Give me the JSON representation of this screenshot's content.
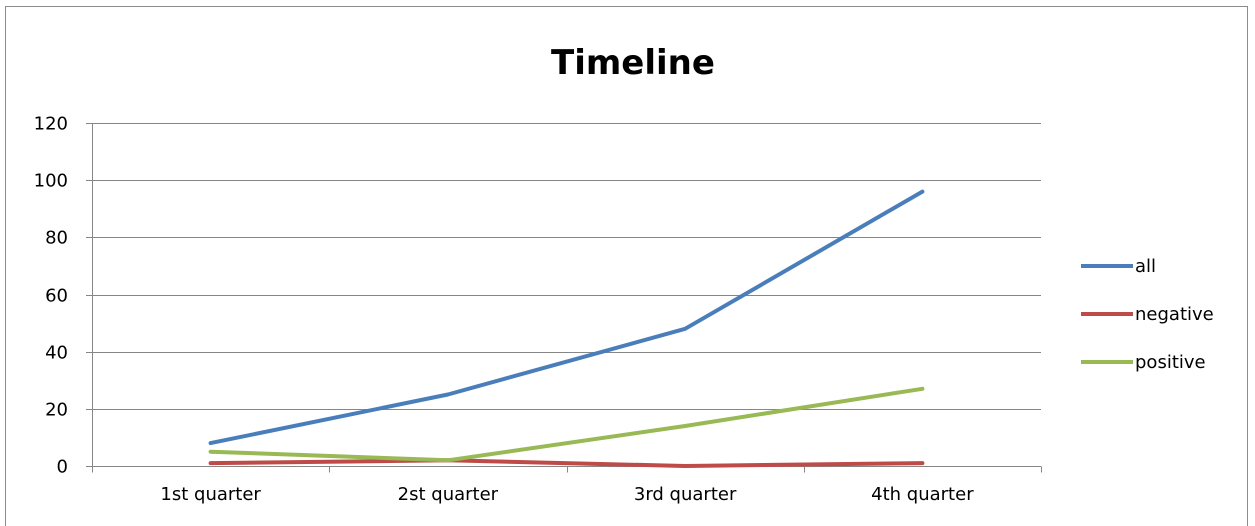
{
  "chart_data": {
    "type": "line",
    "title": "Timeline",
    "xlabel": "",
    "ylabel": "",
    "categories": [
      "1st quarter",
      "2st quarter",
      "3rd quarter",
      "4th quarter"
    ],
    "ylim": [
      0,
      120
    ],
    "yticks": [
      0,
      20,
      40,
      60,
      80,
      100,
      120
    ],
    "grid": true,
    "legend_position": "right",
    "series": [
      {
        "name": "all",
        "color": "#4a7ebb",
        "values": [
          8,
          25,
          48,
          96
        ]
      },
      {
        "name": "negative",
        "color": "#be4b48",
        "values": [
          1,
          2,
          0,
          1
        ]
      },
      {
        "name": "positive",
        "color": "#98b954",
        "values": [
          5,
          2,
          14,
          27
        ]
      }
    ]
  }
}
